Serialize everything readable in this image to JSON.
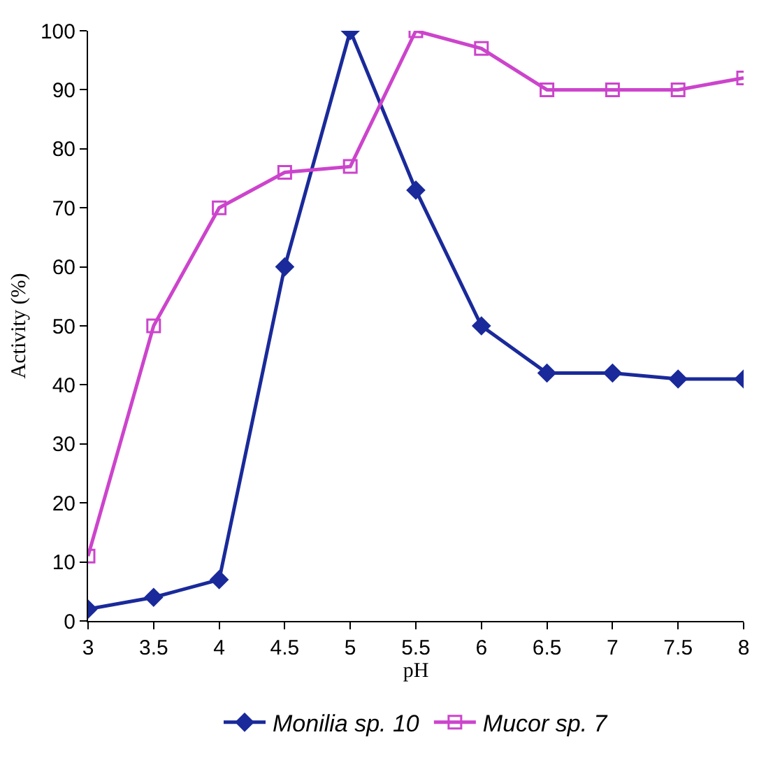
{
  "chart_data": {
    "type": "line",
    "xlabel": "pH",
    "ylabel": "Activity (%)",
    "x": [
      3,
      3.5,
      4,
      4.5,
      5,
      5.5,
      6,
      6.5,
      7,
      7.5,
      8
    ],
    "series": [
      {
        "name": "Monilia sp. 10",
        "color": "#1a2a9a",
        "marker": "diamond",
        "values": [
          2,
          4,
          7,
          60,
          100,
          73,
          50,
          42,
          42,
          41,
          41
        ]
      },
      {
        "name": "Mucor sp. 7",
        "color": "#cc44cc",
        "marker": "square",
        "values": [
          11,
          50,
          70,
          76,
          77,
          100,
          97,
          90,
          90,
          90,
          92
        ]
      }
    ],
    "xlim": [
      3,
      8
    ],
    "xticks": [
      3,
      3.5,
      4,
      4.5,
      5,
      5.5,
      6,
      6.5,
      7,
      7.5,
      8
    ],
    "ylim": [
      0,
      100
    ],
    "yticks": [
      0,
      10,
      20,
      30,
      40,
      50,
      60,
      70,
      80,
      90,
      100
    ],
    "legend": "bottom",
    "line_style": "solid"
  }
}
